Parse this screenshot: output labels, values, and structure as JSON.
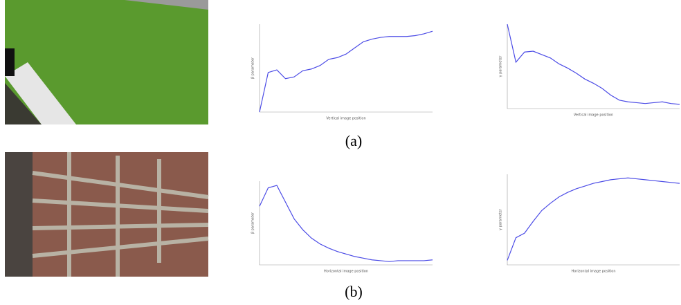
{
  "captions": [
    "(a)",
    "(b)"
  ],
  "chart_data": [
    {
      "type": "line",
      "x_label": "Vertical image position",
      "y_label": "β parameter",
      "xlim": [
        0,
        20
      ],
      "ylim": [
        0,
        1
      ],
      "x": [
        0,
        1,
        2,
        3,
        4,
        5,
        6,
        7,
        8,
        9,
        10,
        11,
        12,
        13,
        14,
        15,
        16,
        17,
        18,
        19,
        20
      ],
      "series": [
        {
          "color": "#4b4be6",
          "values": [
            0,
            0.45,
            0.48,
            0.38,
            0.4,
            0.47,
            0.49,
            0.53,
            0.6,
            0.62,
            0.66,
            0.73,
            0.8,
            0.83,
            0.85,
            0.86,
            0.86,
            0.86,
            0.87,
            0.89,
            0.92
          ]
        }
      ]
    },
    {
      "type": "line",
      "x_label": "Vertical image position",
      "y_label": "γ parameter",
      "xlim": [
        0,
        20
      ],
      "ylim": [
        0,
        1
      ],
      "x": [
        0,
        1,
        2,
        3,
        4,
        5,
        6,
        7,
        8,
        9,
        10,
        11,
        12,
        13,
        14,
        15,
        16,
        17,
        18,
        19,
        20
      ],
      "series": [
        {
          "color": "#4b4be6",
          "values": [
            1,
            0.55,
            0.67,
            0.68,
            0.64,
            0.6,
            0.53,
            0.48,
            0.42,
            0.35,
            0.3,
            0.24,
            0.16,
            0.1,
            0.08,
            0.07,
            0.06,
            0.07,
            0.08,
            0.06,
            0.05
          ]
        }
      ]
    },
    {
      "type": "line",
      "x_label": "Horizontal image position",
      "y_label": "β parameter",
      "xlim": [
        0,
        20
      ],
      "ylim": [
        0,
        1
      ],
      "x": [
        0,
        1,
        2,
        3,
        4,
        5,
        6,
        7,
        8,
        9,
        10,
        11,
        12,
        13,
        14,
        15,
        16,
        17,
        18,
        19,
        20
      ],
      "series": [
        {
          "color": "#4b4be6",
          "values": [
            0.7,
            0.92,
            0.95,
            0.75,
            0.55,
            0.42,
            0.32,
            0.25,
            0.2,
            0.16,
            0.13,
            0.1,
            0.08,
            0.06,
            0.05,
            0.04,
            0.05,
            0.05,
            0.05,
            0.05,
            0.06
          ]
        }
      ]
    },
    {
      "type": "line",
      "x_label": "Horizontal image position",
      "y_label": "γ parameter",
      "xlim": [
        0,
        20
      ],
      "ylim": [
        0,
        1
      ],
      "x": [
        0,
        1,
        2,
        3,
        4,
        5,
        6,
        7,
        8,
        9,
        10,
        11,
        12,
        13,
        14,
        15,
        16,
        17,
        18,
        19,
        20
      ],
      "series": [
        {
          "color": "#4b4be6",
          "values": [
            0.05,
            0.3,
            0.35,
            0.48,
            0.6,
            0.68,
            0.75,
            0.8,
            0.84,
            0.87,
            0.9,
            0.92,
            0.94,
            0.95,
            0.96,
            0.95,
            0.94,
            0.93,
            0.92,
            0.91,
            0.9
          ]
        }
      ]
    }
  ]
}
